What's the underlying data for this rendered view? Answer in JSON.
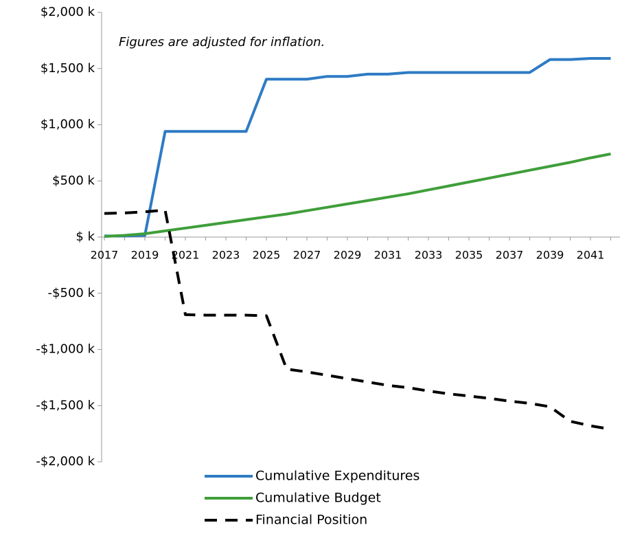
{
  "chart_data": {
    "type": "line",
    "annotation": "Figures are adjusted for inflation.",
    "categories": [
      "2017",
      null,
      "2019",
      null,
      "2021",
      null,
      "2023",
      null,
      "2025",
      null,
      "2027",
      null,
      "2029",
      null,
      "2031",
      null,
      "2033",
      null,
      "2035",
      null,
      "2037",
      null,
      "2039",
      null,
      "2041",
      null
    ],
    "series": [
      {
        "name": "Cumulative Expenditures",
        "color": "#2e7bc4",
        "line_style": "solid",
        "values": [
          10,
          10,
          15,
          940,
          940,
          940,
          940,
          940,
          1405,
          1405,
          1405,
          1430,
          1430,
          1450,
          1450,
          1465,
          1465,
          1465,
          1465,
          1465,
          1465,
          1465,
          1580,
          1580,
          1590,
          1590
        ]
      },
      {
        "name": "Cumulative Budget",
        "color": "#3f9e3a",
        "line_style": "solid",
        "values": [
          5,
          15,
          30,
          55,
          80,
          105,
          130,
          155,
          180,
          205,
          235,
          265,
          295,
          325,
          355,
          385,
          420,
          455,
          490,
          525,
          560,
          595,
          630,
          665,
          705,
          740
        ]
      },
      {
        "name": "Financial Position",
        "color": "#000000",
        "line_style": "dashed",
        "values": [
          210,
          215,
          225,
          240,
          -690,
          -695,
          -695,
          -695,
          -700,
          -1175,
          -1200,
          -1230,
          -1260,
          -1290,
          -1320,
          -1340,
          -1370,
          -1395,
          -1415,
          -1435,
          -1460,
          -1480,
          -1510,
          -1640,
          -1680,
          -1710
        ]
      }
    ],
    "ylim": [
      -2000,
      2000
    ],
    "yticks": [
      {
        "value": -2000,
        "label": "-$2,000 k"
      },
      {
        "value": -1500,
        "label": "-$1,500 k"
      },
      {
        "value": -1000,
        "label": "-$1,000 k"
      },
      {
        "value": -500,
        "label": "-$500 k"
      },
      {
        "value": 0,
        "label": "$ k"
      },
      {
        "value": 500,
        "label": "$500 k"
      },
      {
        "value": 1000,
        "label": "$1,000 k"
      },
      {
        "value": 1500,
        "label": "$1,500 k"
      },
      {
        "value": 2000,
        "label": "$2,000 k"
      }
    ],
    "grid": false
  }
}
